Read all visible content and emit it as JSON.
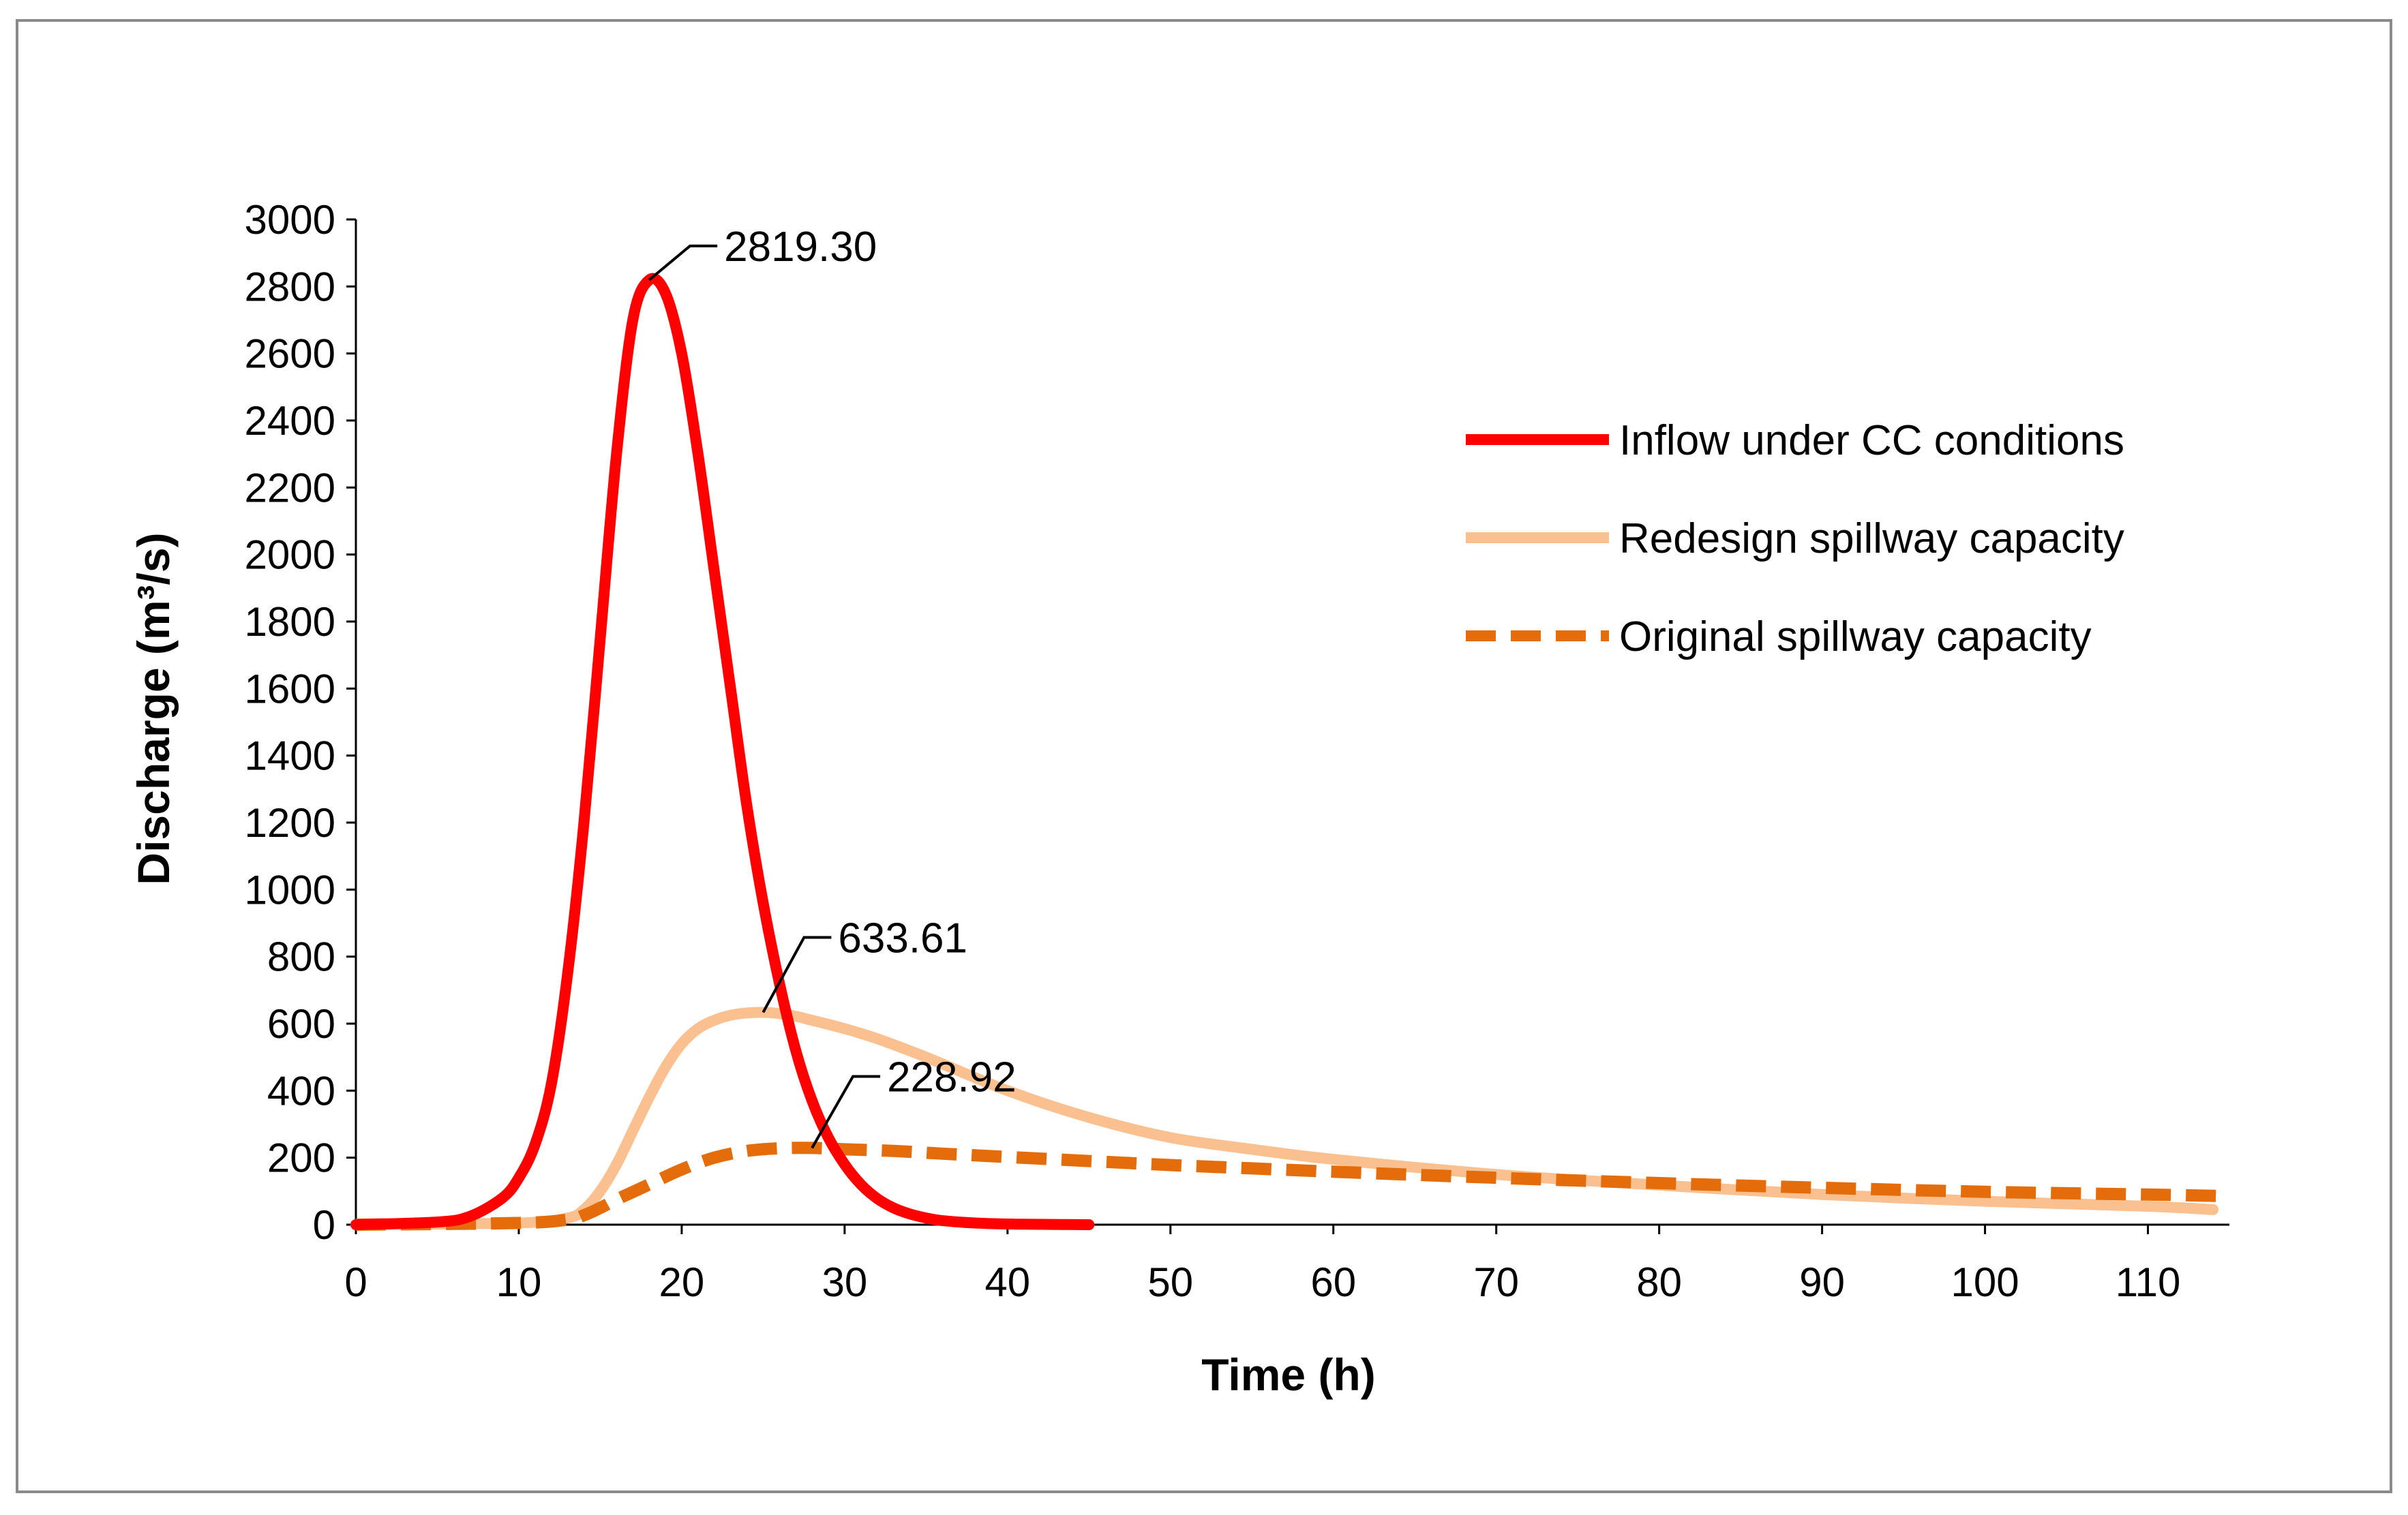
{
  "chart_data": {
    "type": "line",
    "title": "",
    "xlabel": "Time (h)",
    "ylabel": "Discharge (m³/s)",
    "xlim": [
      0,
      115
    ],
    "ylim": [
      0,
      3000
    ],
    "x_ticks": [
      0,
      10,
      20,
      30,
      40,
      50,
      60,
      70,
      80,
      90,
      100,
      110
    ],
    "y_ticks": [
      0,
      200,
      400,
      600,
      800,
      1000,
      1200,
      1400,
      1600,
      1800,
      2000,
      2200,
      2400,
      2600,
      2800,
      3000
    ],
    "grid": false,
    "legend_position": "top-right",
    "series": [
      {
        "name": "Inflow under CC conditions",
        "color": "#ff0000",
        "style": "solid",
        "x": [
          0,
          5,
          7,
          9,
          10,
          11,
          12,
          13,
          14,
          15,
          16,
          17,
          18,
          19,
          20,
          21,
          22,
          23,
          24,
          25,
          26,
          27,
          28,
          29,
          30,
          31,
          32,
          33,
          34,
          35,
          36,
          38,
          40,
          42,
          45
        ],
        "values": [
          0,
          8,
          25,
          80,
          140,
          240,
          420,
          750,
          1200,
          1750,
          2300,
          2700,
          2819.3,
          2780,
          2600,
          2300,
          1950,
          1600,
          1250,
          960,
          720,
          520,
          370,
          260,
          180,
          120,
          78,
          50,
          32,
          20,
          12,
          5,
          2,
          1,
          0
        ]
      },
      {
        "name": "Redesign spillway capacity",
        "color": "#fac090",
        "style": "solid",
        "x": [
          0,
          10,
          13,
          14,
          15,
          16,
          17,
          18,
          19,
          20,
          21,
          22,
          23,
          24,
          25,
          26,
          27,
          28,
          30,
          32,
          35,
          40,
          45,
          50,
          55,
          60,
          70,
          80,
          90,
          100,
          110,
          114
        ],
        "values": [
          0,
          5,
          20,
          45,
          100,
          180,
          280,
          380,
          470,
          540,
          585,
          610,
          625,
          632,
          633.61,
          630,
          622,
          610,
          585,
          555,
          500,
          400,
          320,
          260,
          225,
          195,
          150,
          118,
          90,
          70,
          55,
          45
        ]
      },
      {
        "name": "Original spillway capacity",
        "color": "#e46c0a",
        "style": "dashed",
        "x": [
          0,
          10,
          13,
          14,
          15,
          16,
          18,
          20,
          22,
          24,
          26,
          28,
          30,
          33,
          36,
          40,
          45,
          50,
          55,
          60,
          70,
          80,
          90,
          100,
          110,
          115
        ],
        "values": [
          0,
          5,
          15,
          28,
          50,
          75,
          120,
          165,
          200,
          220,
          228,
          228.92,
          225,
          220,
          212,
          202,
          190,
          178,
          168,
          158,
          140,
          124,
          110,
          98,
          90,
          85
        ]
      }
    ],
    "annotations": [
      {
        "text": "2819.30",
        "x": 18,
        "y": 2819.3
      },
      {
        "text": "633.61",
        "x": 25,
        "y": 633.61
      },
      {
        "text": "228.92",
        "x": 28,
        "y": 228.92
      }
    ]
  }
}
